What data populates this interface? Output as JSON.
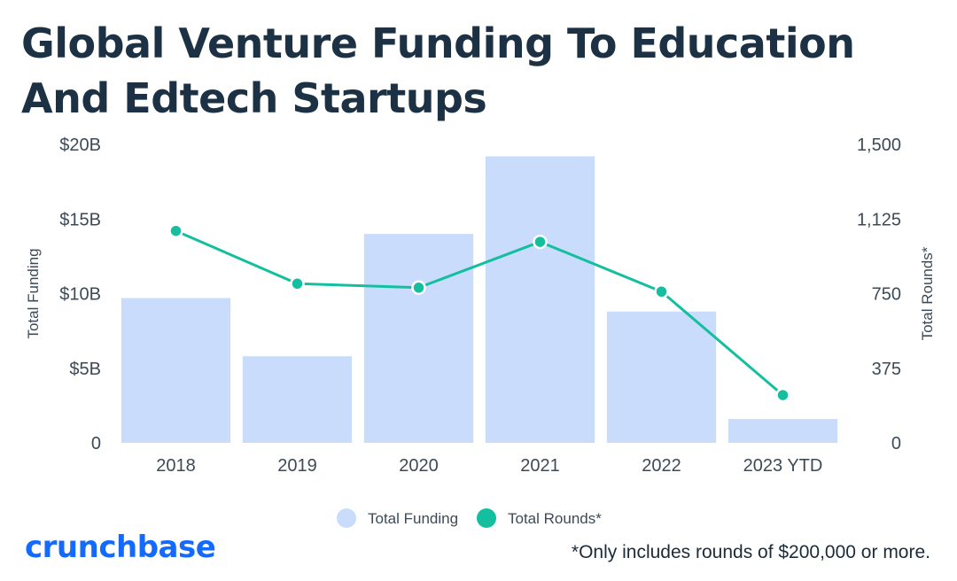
{
  "title": "Global Venture Funding To Education And Edtech Startups",
  "brand": "crunchbase",
  "footnote": "*Only includes rounds of $200,000 or more.",
  "colors": {
    "bar": "#c9dcfc",
    "line": "#14bf9f",
    "title": "#1c3144",
    "axis_text": "#3d4a56",
    "brand": "#146aff"
  },
  "chart_data": {
    "type": "bar",
    "categories": [
      "2018",
      "2019",
      "2020",
      "2021",
      "2022",
      "2023 YTD"
    ],
    "series": [
      {
        "name": "Total Funding",
        "type": "bar",
        "axis": "left",
        "values": [
          9.7,
          5.8,
          14.0,
          19.2,
          8.8,
          1.6
        ]
      },
      {
        "name": "Total Rounds*",
        "type": "line",
        "axis": "right",
        "values": [
          1065,
          800,
          780,
          1010,
          760,
          240
        ]
      }
    ],
    "ylabel": "Total Funding",
    "y2label": "Total Rounds*",
    "ylim": [
      0,
      20
    ],
    "y2lim": [
      0,
      1500
    ],
    "yticks": [
      "0",
      "$5B",
      "$10B",
      "$15B",
      "$20B"
    ],
    "y2ticks": [
      "0",
      "375",
      "750",
      "1,125",
      "1,500"
    ],
    "grid": false,
    "legend": {
      "placement": "bottom-center",
      "entries": [
        "Total Funding",
        "Total Rounds*"
      ]
    }
  }
}
